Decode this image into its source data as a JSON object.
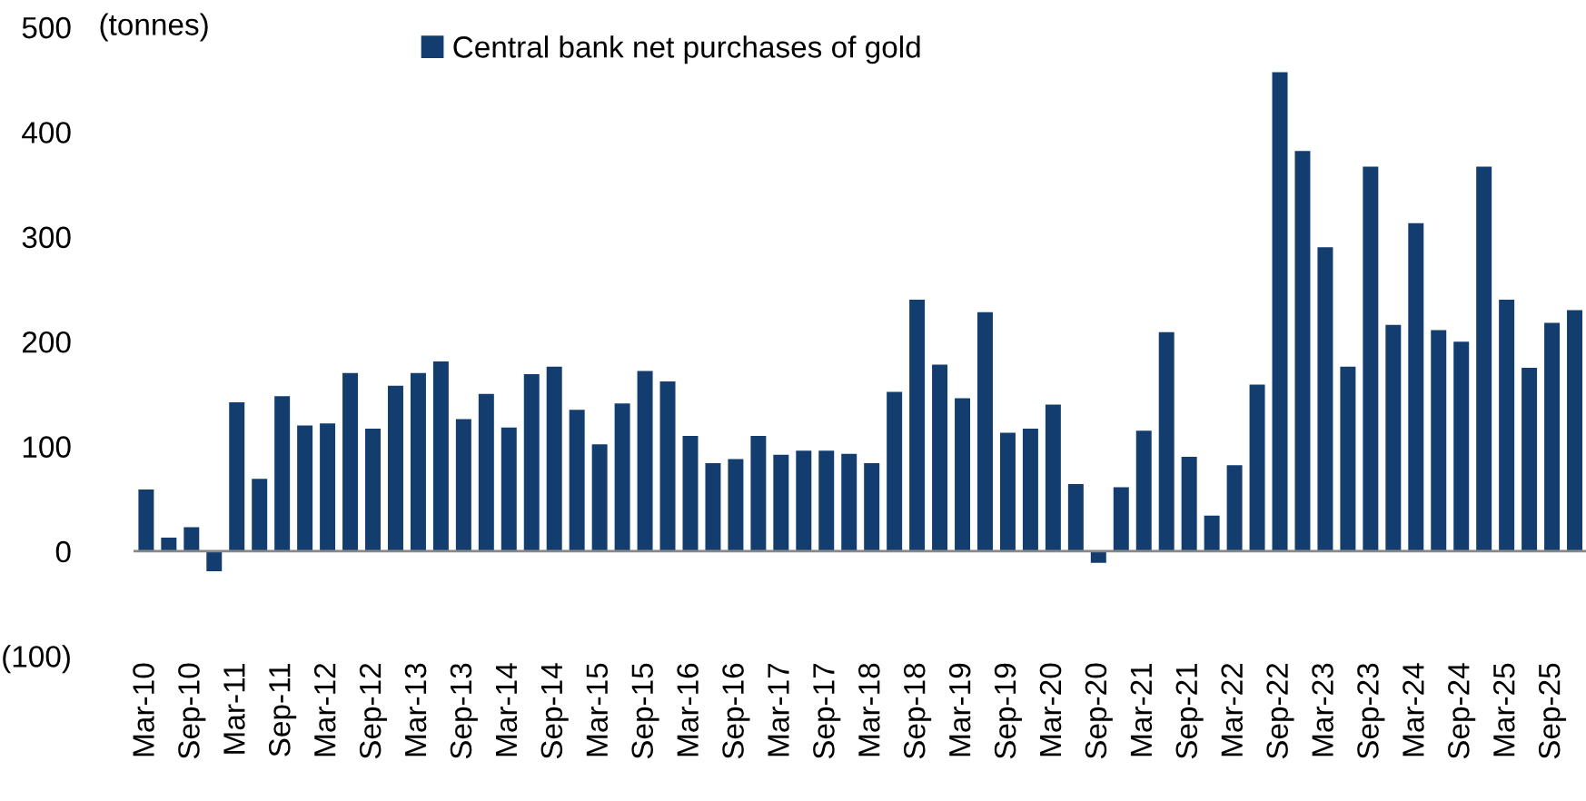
{
  "chart_data": {
    "type": "bar",
    "ylabel": "(tonnes)",
    "categories": [
      "Mar-10",
      null,
      "Sep-10",
      null,
      "Mar-11",
      null,
      "Sep-11",
      null,
      "Mar-12",
      null,
      "Sep-12",
      null,
      "Mar-13",
      null,
      "Sep-13",
      null,
      "Mar-14",
      null,
      "Sep-14",
      null,
      "Mar-15",
      null,
      "Sep-15",
      null,
      "Mar-16",
      null,
      "Sep-16",
      null,
      "Mar-17",
      null,
      "Sep-17",
      null,
      "Mar-18",
      null,
      "Sep-18",
      null,
      "Mar-19",
      null,
      "Sep-19",
      null,
      "Mar-20",
      null,
      "Sep-20",
      null,
      "Mar-21",
      null,
      "Sep-21",
      null,
      "Mar-22",
      null,
      "Sep-22",
      null,
      "Mar-23",
      null,
      "Sep-23",
      null,
      "Mar-24",
      null,
      "Sep-24",
      null,
      "Mar-25",
      null,
      "Sep-25",
      null
    ],
    "series": [
      {
        "name": "Central bank net purchases of gold",
        "color": "#123d6e",
        "values": [
          59,
          13,
          23,
          -19,
          142,
          69,
          148,
          120,
          122,
          170,
          117,
          158,
          170,
          181,
          126,
          150,
          118,
          169,
          176,
          135,
          102,
          141,
          172,
          162,
          110,
          84,
          88,
          110,
          92,
          96,
          96,
          93,
          84,
          152,
          240,
          178,
          146,
          228,
          113,
          117,
          140,
          64,
          -11,
          61,
          115,
          209,
          90,
          34,
          82,
          159,
          457,
          382,
          290,
          176,
          367,
          216,
          313,
          211,
          200,
          367,
          240,
          175,
          218,
          230
        ]
      }
    ],
    "ylim": [
      -100,
      500
    ],
    "yticks": [
      {
        "value": -100,
        "label": "(100)"
      },
      0,
      100,
      200,
      300,
      400,
      500
    ],
    "legend": "top"
  }
}
